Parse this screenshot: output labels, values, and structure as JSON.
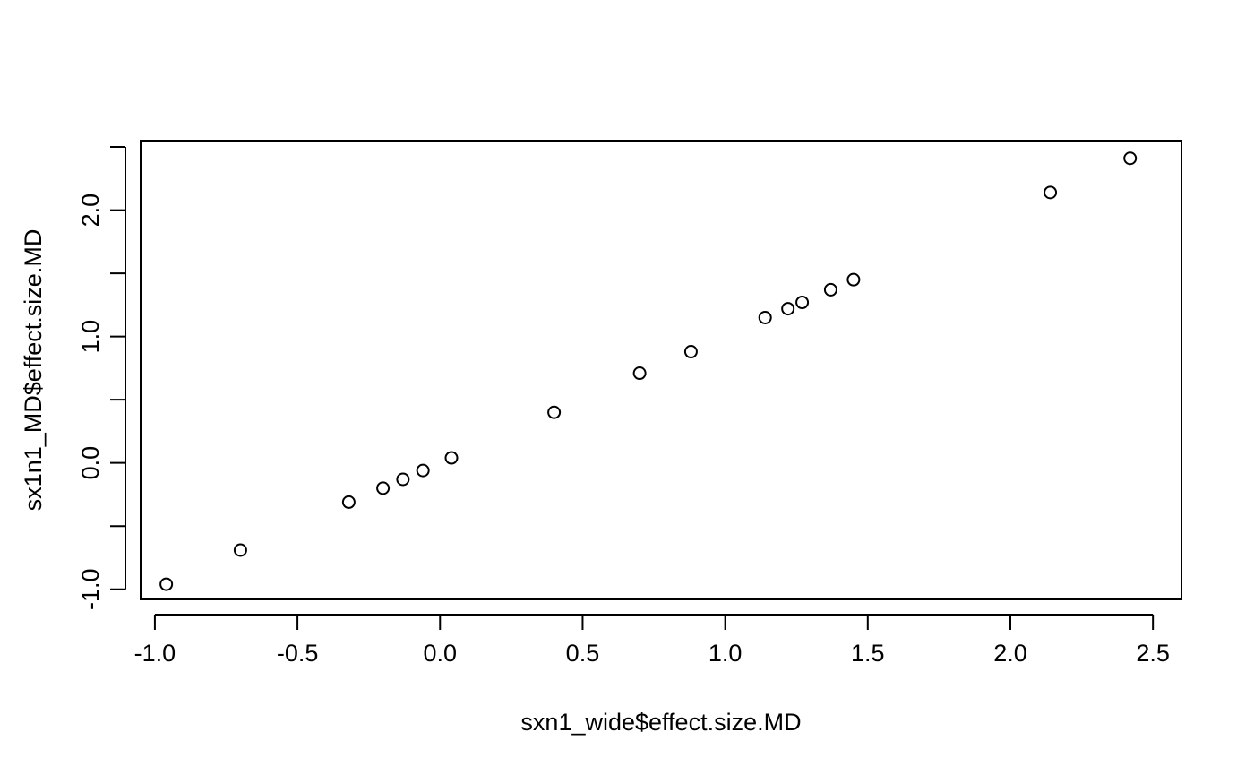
{
  "chart_data": {
    "type": "scatter",
    "title": "",
    "xlabel": "sxn1_wide$effect.size.MD",
    "ylabel": "sx1n1_MD$effect.size.MD",
    "xlim": [
      -1.05,
      2.6
    ],
    "ylim": [
      -1.08,
      2.55
    ],
    "x_ticks": [
      -1.0,
      -0.5,
      0.0,
      0.5,
      1.0,
      1.5,
      2.0,
      2.5
    ],
    "x_tick_labels": [
      "-1.0",
      "-0.5",
      "0.0",
      "0.5",
      "1.0",
      "1.5",
      "2.0",
      "2.5"
    ],
    "y_ticks": [
      -1.0,
      -0.5,
      0.0,
      0.5,
      1.0,
      1.5,
      2.0,
      2.5
    ],
    "y_tick_labels": [
      "-1.0",
      "",
      "0.0",
      "",
      "1.0",
      "",
      "2.0",
      ""
    ],
    "grid": false,
    "marker": "open-circle",
    "color": "#000000",
    "points": [
      {
        "x": -0.96,
        "y": -0.96
      },
      {
        "x": -0.7,
        "y": -0.69
      },
      {
        "x": -0.32,
        "y": -0.31
      },
      {
        "x": -0.2,
        "y": -0.2
      },
      {
        "x": -0.13,
        "y": -0.13
      },
      {
        "x": -0.06,
        "y": -0.06
      },
      {
        "x": 0.04,
        "y": 0.04
      },
      {
        "x": 0.4,
        "y": 0.4
      },
      {
        "x": 0.7,
        "y": 0.71
      },
      {
        "x": 0.88,
        "y": 0.88
      },
      {
        "x": 1.14,
        "y": 1.15
      },
      {
        "x": 1.22,
        "y": 1.22
      },
      {
        "x": 1.27,
        "y": 1.27
      },
      {
        "x": 1.37,
        "y": 1.37
      },
      {
        "x": 1.45,
        "y": 1.45
      },
      {
        "x": 2.14,
        "y": 2.14
      },
      {
        "x": 2.42,
        "y": 2.41
      }
    ]
  }
}
